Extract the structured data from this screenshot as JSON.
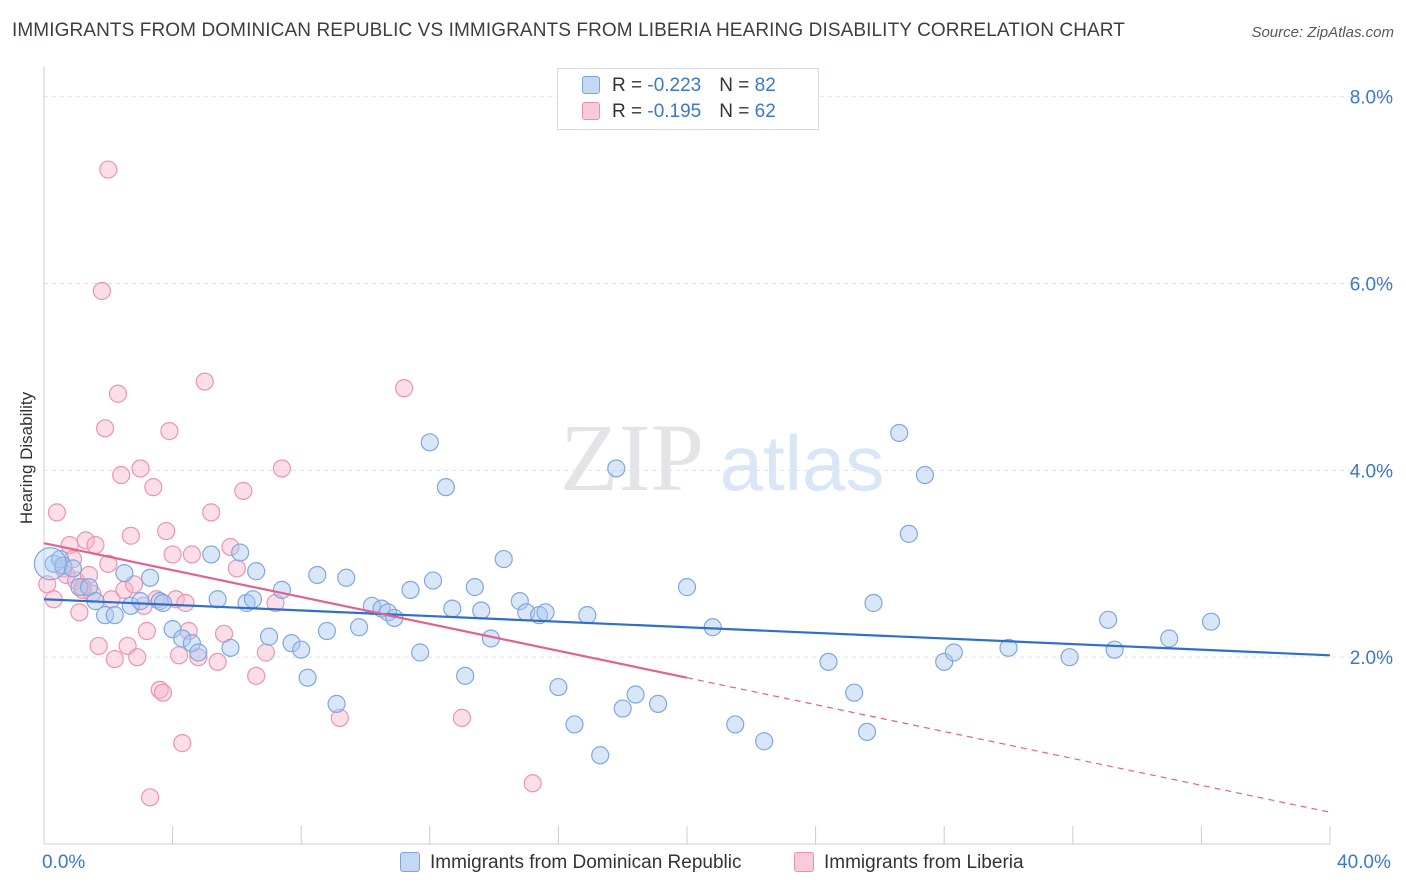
{
  "title": "IMMIGRANTS FROM DOMINICAN REPUBLIC VS IMMIGRANTS FROM LIBERIA HEARING DISABILITY CORRELATION CHART",
  "source": "Source: ZipAtlas.com",
  "watermark": {
    "zip": "ZIP",
    "atlas": "atlas"
  },
  "legend": {
    "series1": {
      "r_label": "R = ",
      "r_value": "-0.223",
      "n_label": "N = ",
      "n_value": "82"
    },
    "series2": {
      "r_label": "R = ",
      "r_value": "-0.195",
      "n_label": "N = ",
      "n_value": "62"
    }
  },
  "chart_data": {
    "type": "scatter",
    "ylabel": "Hearing Disability",
    "xlim": [
      0,
      40
    ],
    "ylim": [
      0,
      8.2
    ],
    "x_tick_labels": [
      {
        "value": 0,
        "label": "0.0%"
      },
      {
        "value": 40,
        "label": "40.0%"
      }
    ],
    "y_tick_labels": [
      {
        "value": 2,
        "label": "2.0%"
      },
      {
        "value": 4,
        "label": "4.0%"
      },
      {
        "value": 6,
        "label": "6.0%"
      },
      {
        "value": 8,
        "label": "8.0%"
      }
    ],
    "grid": true,
    "legend_position": "top-center",
    "colors": {
      "series1": "#a9c8f0",
      "series1_line": "#2f6fcb",
      "series2": "#f6b6ca",
      "series2_line": "#e0628f"
    },
    "series": [
      {
        "name": "Immigrants from Dominican Republic",
        "trend": {
          "x": [
            0,
            40
          ],
          "y": [
            2.62,
            2.02
          ]
        },
        "points": [
          [
            0.3,
            3.0
          ],
          [
            0.5,
            3.05
          ],
          [
            0.6,
            2.98
          ],
          [
            0.9,
            2.95
          ],
          [
            1.1,
            2.75
          ],
          [
            1.4,
            2.75
          ],
          [
            1.6,
            2.6
          ],
          [
            1.9,
            2.45
          ],
          [
            2.2,
            2.45
          ],
          [
            2.5,
            2.9
          ],
          [
            2.7,
            2.55
          ],
          [
            3.0,
            2.6
          ],
          [
            3.3,
            2.85
          ],
          [
            3.6,
            2.6
          ],
          [
            3.7,
            2.58
          ],
          [
            4.0,
            2.3
          ],
          [
            4.3,
            2.2
          ],
          [
            4.6,
            2.15
          ],
          [
            4.8,
            2.05
          ],
          [
            5.2,
            3.1
          ],
          [
            5.4,
            2.62
          ],
          [
            5.8,
            2.1
          ],
          [
            6.1,
            3.12
          ],
          [
            6.3,
            2.58
          ],
          [
            6.5,
            2.62
          ],
          [
            6.6,
            2.92
          ],
          [
            7.0,
            2.22
          ],
          [
            7.4,
            2.72
          ],
          [
            7.7,
            2.15
          ],
          [
            8.0,
            2.08
          ],
          [
            8.2,
            1.78
          ],
          [
            8.5,
            2.88
          ],
          [
            8.8,
            2.28
          ],
          [
            9.1,
            1.5
          ],
          [
            9.4,
            2.85
          ],
          [
            9.8,
            2.32
          ],
          [
            10.2,
            2.55
          ],
          [
            10.5,
            2.52
          ],
          [
            10.7,
            2.48
          ],
          [
            10.9,
            2.42
          ],
          [
            11.4,
            2.72
          ],
          [
            11.7,
            2.05
          ],
          [
            12.0,
            4.3
          ],
          [
            12.1,
            2.82
          ],
          [
            12.5,
            3.82
          ],
          [
            12.7,
            2.52
          ],
          [
            13.1,
            1.8
          ],
          [
            13.4,
            2.75
          ],
          [
            13.6,
            2.5
          ],
          [
            13.9,
            2.2
          ],
          [
            14.3,
            3.05
          ],
          [
            14.8,
            2.6
          ],
          [
            15.0,
            2.48
          ],
          [
            15.4,
            2.45
          ],
          [
            15.6,
            2.48
          ],
          [
            16.0,
            1.68
          ],
          [
            16.5,
            1.28
          ],
          [
            16.9,
            2.45
          ],
          [
            17.3,
            0.95
          ],
          [
            17.8,
            4.02
          ],
          [
            18.0,
            1.45
          ],
          [
            18.4,
            1.6
          ],
          [
            19.1,
            1.5
          ],
          [
            20.0,
            2.75
          ],
          [
            20.8,
            2.32
          ],
          [
            21.5,
            1.28
          ],
          [
            22.4,
            1.1
          ],
          [
            24.4,
            1.95
          ],
          [
            25.2,
            1.62
          ],
          [
            25.6,
            1.2
          ],
          [
            25.8,
            2.58
          ],
          [
            26.6,
            4.4
          ],
          [
            26.9,
            3.32
          ],
          [
            27.4,
            3.95
          ],
          [
            28.0,
            1.95
          ],
          [
            28.3,
            2.05
          ],
          [
            30.0,
            2.1
          ],
          [
            31.9,
            2.0
          ],
          [
            33.1,
            2.4
          ],
          [
            33.3,
            2.08
          ],
          [
            35.0,
            2.2
          ],
          [
            36.3,
            2.38
          ]
        ]
      },
      {
        "name": "Immigrants from Liberia",
        "trend": {
          "x": [
            0,
            20
          ],
          "y": [
            3.22,
            1.78
          ]
        },
        "trend_extended": {
          "x": [
            20,
            40
          ],
          "y": [
            1.78,
            0.34
          ]
        },
        "points": [
          [
            0.1,
            2.78
          ],
          [
            0.3,
            2.62
          ],
          [
            0.4,
            3.55
          ],
          [
            0.6,
            2.95
          ],
          [
            0.7,
            2.88
          ],
          [
            0.8,
            3.2
          ],
          [
            0.9,
            3.05
          ],
          [
            1.0,
            2.82
          ],
          [
            1.1,
            2.48
          ],
          [
            1.2,
            2.72
          ],
          [
            1.3,
            3.25
          ],
          [
            1.4,
            2.88
          ],
          [
            1.5,
            2.68
          ],
          [
            1.6,
            3.2
          ],
          [
            1.7,
            2.12
          ],
          [
            1.8,
            5.92
          ],
          [
            1.9,
            4.45
          ],
          [
            2.0,
            3.0
          ],
          [
            2.1,
            2.62
          ],
          [
            2.2,
            1.98
          ],
          [
            2.3,
            4.82
          ],
          [
            2.4,
            3.95
          ],
          [
            2.5,
            2.72
          ],
          [
            2.6,
            2.12
          ],
          [
            2.7,
            3.3
          ],
          [
            2.8,
            2.78
          ],
          [
            2.9,
            2.0
          ],
          [
            3.0,
            4.02
          ],
          [
            3.1,
            2.55
          ],
          [
            3.2,
            2.28
          ],
          [
            3.3,
            0.5
          ],
          [
            3.4,
            3.82
          ],
          [
            3.5,
            2.62
          ],
          [
            3.6,
            1.65
          ],
          [
            3.7,
            1.62
          ],
          [
            3.8,
            3.35
          ],
          [
            3.9,
            4.42
          ],
          [
            4.0,
            3.1
          ],
          [
            4.1,
            2.62
          ],
          [
            4.2,
            2.02
          ],
          [
            4.3,
            1.08
          ],
          [
            4.4,
            2.58
          ],
          [
            4.5,
            2.28
          ],
          [
            4.6,
            3.1
          ],
          [
            4.8,
            2.0
          ],
          [
            5.0,
            4.95
          ],
          [
            5.2,
            3.55
          ],
          [
            5.4,
            1.95
          ],
          [
            5.6,
            2.25
          ],
          [
            5.8,
            3.18
          ],
          [
            6.0,
            2.95
          ],
          [
            6.2,
            3.78
          ],
          [
            6.6,
            1.8
          ],
          [
            6.9,
            2.05
          ],
          [
            7.2,
            2.58
          ],
          [
            7.4,
            4.02
          ],
          [
            9.2,
            1.35
          ],
          [
            11.2,
            4.88
          ],
          [
            13.0,
            1.35
          ],
          [
            15.2,
            0.65
          ],
          [
            2.0,
            7.22
          ],
          [
            1.2,
            2.75
          ]
        ]
      }
    ]
  },
  "bottom_legend": {
    "series1": "Immigrants from Dominican Republic",
    "series2": "Immigrants from Liberia"
  }
}
